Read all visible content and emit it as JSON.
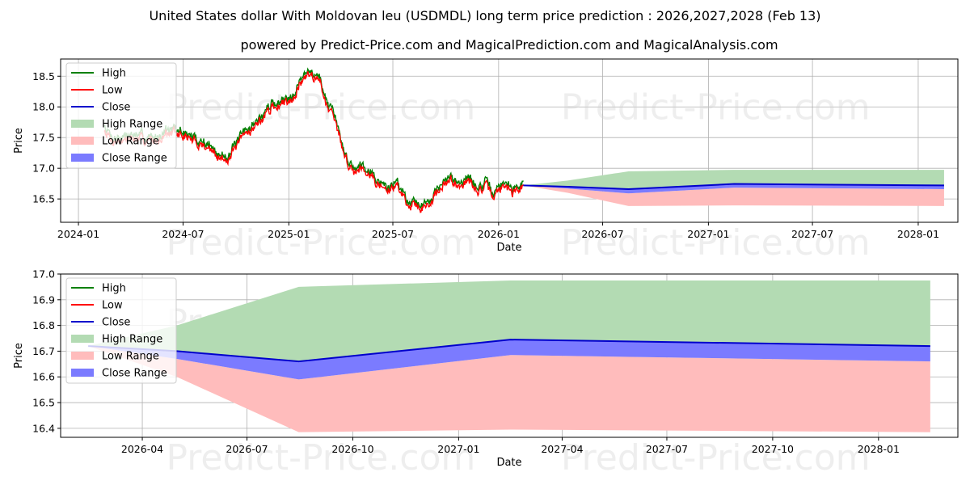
{
  "chart_data": [
    {
      "type": "line",
      "panel": "top",
      "title": "United States dollar With Moldovan leu (USDMDL) long term price prediction : 2026,2027,2028 (Feb 13)",
      "subtitle": "powered by Predict-Price.com and MagicalPrediction.com and MagicalAnalysis.com",
      "xlabel": "Date",
      "ylabel": "Price",
      "xlim": [
        "2023-12-01",
        "2028-03-10"
      ],
      "ylim": [
        16.12,
        18.78
      ],
      "xticks": [
        "2024-01-01",
        "2024-07-01",
        "2025-01-01",
        "2025-07-01",
        "2026-01-01",
        "2026-07-01",
        "2027-01-01",
        "2027-07-01",
        "2028-01-01"
      ],
      "xtick_labels": [
        "2024-01",
        "2024-07",
        "2025-01",
        "2025-07",
        "2026-01",
        "2026-07",
        "2027-01",
        "2027-07",
        "2028-01"
      ],
      "yticks": [
        16.5,
        17.0,
        17.5,
        18.0,
        18.5
      ],
      "ytick_labels": [
        "16.5",
        "17.0",
        "17.5",
        "18.0",
        "18.5"
      ],
      "grid": true,
      "legend_position": "top-left",
      "legend": [
        "High",
        "Low",
        "Close",
        "High Range",
        "Low Range",
        "Close Range"
      ],
      "history_anchors": {
        "dates": [
          "2024-02-15",
          "2024-03-01",
          "2024-04-01",
          "2024-05-15",
          "2024-06-01",
          "2024-07-01",
          "2024-07-20",
          "2024-08-15",
          "2024-09-01",
          "2024-09-20",
          "2024-10-01",
          "2024-10-20",
          "2024-11-10",
          "2024-12-01",
          "2024-12-20",
          "2025-01-10",
          "2025-01-20",
          "2025-02-10",
          "2025-02-25",
          "2025-03-10",
          "2025-03-25",
          "2025-04-10",
          "2025-04-25",
          "2025-05-10",
          "2025-05-25",
          "2025-06-10",
          "2025-06-25",
          "2025-07-10",
          "2025-07-25",
          "2025-08-10",
          "2025-08-25",
          "2025-09-10",
          "2025-09-25",
          "2025-10-10",
          "2025-10-25",
          "2025-11-10",
          "2025-11-25",
          "2025-12-10",
          "2025-12-25",
          "2026-01-10",
          "2026-01-25",
          "2026-02-13"
        ],
        "values": [
          17.65,
          17.45,
          17.5,
          17.45,
          17.6,
          17.55,
          17.45,
          17.35,
          17.15,
          17.2,
          17.35,
          17.6,
          17.75,
          18.0,
          18.05,
          18.2,
          18.4,
          18.55,
          18.4,
          18.0,
          17.7,
          17.15,
          16.95,
          17.05,
          16.9,
          16.7,
          16.65,
          16.75,
          16.45,
          16.42,
          16.35,
          16.55,
          16.7,
          16.8,
          16.75,
          16.8,
          16.65,
          16.7,
          16.55,
          16.75,
          16.6,
          16.72
        ]
      },
      "forecast": {
        "dates": [
          "2026-02-13",
          "2026-05-01",
          "2026-08-15",
          "2027-02-15",
          "2028-02-15"
        ],
        "close": [
          16.72,
          16.7,
          16.66,
          16.745,
          16.72
        ],
        "close_range_high": [
          16.72,
          16.7,
          16.66,
          16.745,
          16.72
        ],
        "close_range_low": [
          16.72,
          16.67,
          16.59,
          16.685,
          16.66
        ],
        "high_range": [
          16.72,
          16.8,
          16.95,
          16.975,
          16.975
        ],
        "low_range": [
          16.72,
          16.6,
          16.385,
          16.395,
          16.385
        ]
      }
    },
    {
      "type": "line",
      "panel": "bottom",
      "xlabel": "Date",
      "ylabel": "Price",
      "xlim": [
        "2026-01-20",
        "2028-03-10"
      ],
      "ylim": [
        16.365,
        17.0
      ],
      "xticks": [
        "2026-04-01",
        "2026-07-01",
        "2026-10-01",
        "2027-01-01",
        "2027-04-01",
        "2027-07-01",
        "2027-10-01",
        "2028-01-01"
      ],
      "xtick_labels": [
        "2026-04",
        "2026-07",
        "2026-10",
        "2027-01",
        "2027-04",
        "2027-07",
        "2027-10",
        "2028-01"
      ],
      "yticks": [
        16.4,
        16.5,
        16.6,
        16.7,
        16.8,
        16.9,
        17.0
      ],
      "ytick_labels": [
        "16.4",
        "16.5",
        "16.6",
        "16.7",
        "16.8",
        "16.9",
        "17.0"
      ],
      "grid": true,
      "legend_position": "top-left",
      "legend": [
        "High",
        "Low",
        "Close",
        "High Range",
        "Low Range",
        "Close Range"
      ]
    }
  ],
  "watermark": "Predict-Price.com",
  "colors": {
    "high": "#008000",
    "low": "#ff0000",
    "close": "#0000cc",
    "high_range": "#b3dbb3",
    "low_range": "#ffbcbc",
    "close_range": "#7b7bff",
    "grid": "#b0b0b0"
  }
}
